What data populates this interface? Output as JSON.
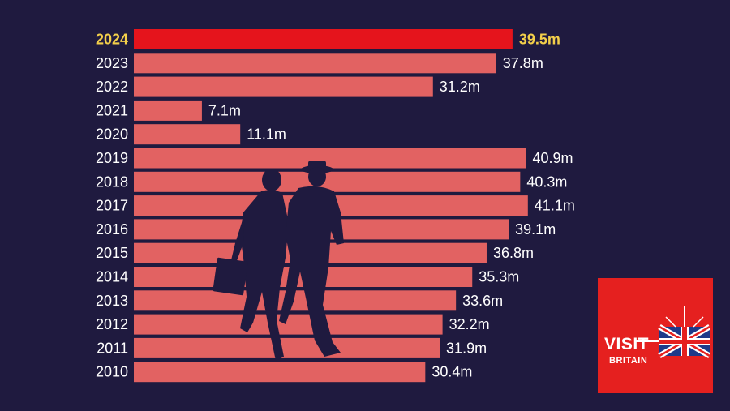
{
  "chart_data": {
    "type": "bar",
    "orientation": "horizontal",
    "categories": [
      "2024",
      "2023",
      "2022",
      "2021",
      "2020",
      "2019",
      "2018",
      "2017",
      "2016",
      "2015",
      "2014",
      "2013",
      "2012",
      "2011",
      "2010"
    ],
    "values": [
      39.5,
      37.8,
      31.2,
      7.1,
      11.1,
      40.9,
      40.3,
      41.1,
      39.1,
      36.8,
      35.3,
      33.6,
      32.2,
      31.9,
      30.4
    ],
    "value_labels": [
      "39.5m",
      "37.8m",
      "31.2m",
      "7.1m",
      "11.1m",
      "40.9m",
      "40.3m",
      "41.1m",
      "39.1m",
      "36.8m",
      "35.3m",
      "33.6m",
      "32.2m",
      "31.9m",
      "30.4m"
    ],
    "highlight_category": "2024",
    "colors": {
      "bar": "#e26262",
      "highlight_bar": "#e5141c",
      "highlight_text": "#f3cf4a",
      "background": "#1f1a3f"
    }
  },
  "logo": {
    "line1": "VISIT",
    "line2": "BRITAIN"
  }
}
